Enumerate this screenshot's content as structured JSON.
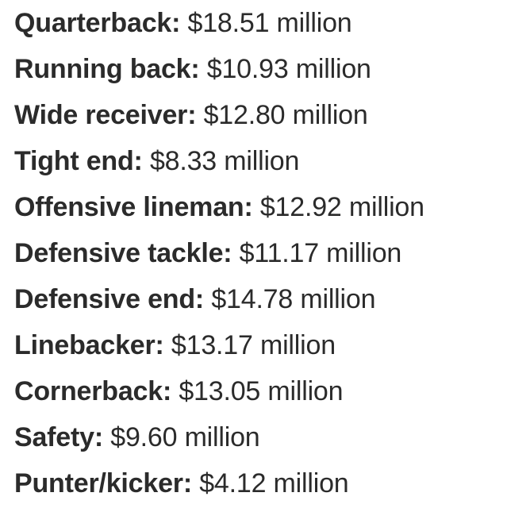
{
  "positions": [
    {
      "label": "Quarterback:",
      "value": "$18.51 million"
    },
    {
      "label": "Running back:",
      "value": "$10.93 million"
    },
    {
      "label": "Wide receiver:",
      "value": "$12.80 million"
    },
    {
      "label": "Tight end:",
      "value": "$8.33 million"
    },
    {
      "label": "Offensive lineman:",
      "value": "$12.92 million"
    },
    {
      "label": "Defensive tackle:",
      "value": "$11.17 million"
    },
    {
      "label": "Defensive end:",
      "value": "$14.78 million"
    },
    {
      "label": "Linebacker:",
      "value": "$13.17 million"
    },
    {
      "label": "Cornerback:",
      "value": "$13.05 million"
    },
    {
      "label": "Safety:",
      "value": "$9.60 million"
    },
    {
      "label": "Punter/kicker:",
      "value": "$4.12 million"
    }
  ]
}
